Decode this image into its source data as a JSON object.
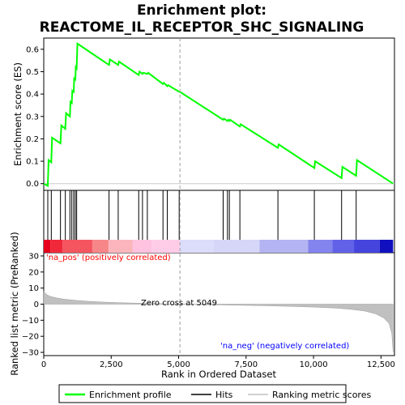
{
  "chart_data": {
    "type": "line",
    "title_line1": "Enrichment plot:",
    "title_line2": "REACTOME_IL_RECEPTOR_SHC_SIGNALING",
    "xlabel": "Rank in Ordered Dataset",
    "es_ylabel": "Enrichment score (ES)",
    "metric_ylabel": "Ranked list metric (PreRanked)",
    "xlim": [
      0,
      13000
    ],
    "es_ylim": [
      -0.03,
      0.65
    ],
    "metric_ylim": [
      -32,
      32
    ],
    "x_ticks": [
      0,
      2500,
      5000,
      7500,
      10000,
      12500
    ],
    "x_tick_labels": [
      "0",
      "2,500",
      "5,000",
      "7,500",
      "10,000",
      "12,500"
    ],
    "es_ticks": [
      0.0,
      0.1,
      0.2,
      0.3,
      0.4,
      0.5,
      0.6
    ],
    "es_tick_labels": [
      "0.0",
      "0.1",
      "0.2",
      "0.3",
      "0.4",
      "0.5",
      "0.6"
    ],
    "metric_ticks": [
      30,
      20,
      10,
      0,
      -10,
      -20,
      -30
    ],
    "metric_tick_labels": [
      "30",
      "20",
      "10",
      "0",
      "−10",
      "−20",
      "−30"
    ],
    "enrichment_profile": {
      "x": [
        0,
        150,
        180,
        280,
        310,
        620,
        650,
        800,
        830,
        970,
        990,
        1040,
        1060,
        1110,
        1130,
        1170,
        1190,
        1220,
        1250,
        2420,
        2450,
        2760,
        2790,
        3520,
        3550,
        3660,
        3690,
        3840,
        3870,
        4420,
        4450,
        4580,
        4610,
        5020,
        5050,
        6650,
        6680,
        6810,
        6840,
        6880,
        6910,
        7270,
        7300,
        8680,
        8710,
        10030,
        10060,
        11040,
        11070,
        11580,
        11610,
        12950
      ],
      "y": [
        0.0,
        -0.01,
        0.105,
        0.095,
        0.205,
        0.18,
        0.26,
        0.245,
        0.315,
        0.3,
        0.365,
        0.36,
        0.415,
        0.41,
        0.47,
        0.465,
        0.52,
        0.515,
        0.625,
        0.53,
        0.555,
        0.53,
        0.545,
        0.485,
        0.5,
        0.49,
        0.495,
        0.49,
        0.495,
        0.445,
        0.45,
        0.435,
        0.44,
        0.41,
        0.41,
        0.285,
        0.29,
        0.28,
        0.285,
        0.28,
        0.285,
        0.255,
        0.265,
        0.16,
        0.175,
        0.07,
        0.1,
        0.025,
        0.075,
        0.035,
        0.105,
        0.0
      ]
    },
    "hits": [
      150,
      280,
      620,
      800,
      970,
      1040,
      1110,
      1170,
      1220,
      2420,
      2760,
      3520,
      3660,
      3840,
      4420,
      4580,
      5020,
      6650,
      6810,
      6880,
      7270,
      8680,
      10030,
      11040,
      11580
    ],
    "ranked_metric": {
      "x": [
        0,
        100,
        250,
        500,
        800,
        1200,
        1700,
        2300,
        3000,
        4000,
        5049,
        6000,
        7000,
        8000,
        9000,
        10000,
        10800,
        11400,
        11900,
        12300,
        12600,
        12800,
        12900,
        12950
      ],
      "y": [
        8,
        6,
        4.8,
        3.8,
        3.0,
        2.3,
        1.7,
        1.2,
        0.8,
        0.4,
        0,
        -0.3,
        -0.6,
        -0.9,
        -1.3,
        -1.8,
        -2.4,
        -3.2,
        -4.3,
        -6.0,
        -8.5,
        -12,
        -18,
        -30
      ]
    },
    "zero_cross_rank": 5049,
    "zero_cross_label": "Zero cross at 5049",
    "pos_label": "'na_pos' (positively correlated)",
    "neg_label": "'na_neg' (negatively correlated)",
    "legend": [
      {
        "name": "Enrichment profile",
        "color": "#00ff00"
      },
      {
        "name": "Hits",
        "color": "#000000"
      },
      {
        "name": "Ranking metric scores",
        "color": "#c0c0c0"
      }
    ],
    "colors": {
      "profile": "#00ff00",
      "hit": "#000000",
      "metric_fill": "#c0c0c0",
      "pos_text": "#ff0000",
      "neg_text": "#0000ff",
      "zero_line": "#9f9f9f"
    },
    "heat_segments": [
      {
        "end": 250,
        "color": "#e6001c"
      },
      {
        "end": 700,
        "color": "#f0283a"
      },
      {
        "end": 1800,
        "color": "#f4555f"
      },
      {
        "end": 2400,
        "color": "#f78689"
      },
      {
        "end": 3300,
        "color": "#fbb6bd"
      },
      {
        "end": 4000,
        "color": "#ffc2df"
      },
      {
        "end": 5049,
        "color": "#ffcce8"
      },
      {
        "end": 6300,
        "color": "#dcdcfb"
      },
      {
        "end": 8000,
        "color": "#d6d6f8"
      },
      {
        "end": 9800,
        "color": "#b4b4f2"
      },
      {
        "end": 10700,
        "color": "#8484ee"
      },
      {
        "end": 11500,
        "color": "#6262e8"
      },
      {
        "end": 12450,
        "color": "#4545dd"
      },
      {
        "end": 12950,
        "color": "#1010c0"
      }
    ]
  }
}
